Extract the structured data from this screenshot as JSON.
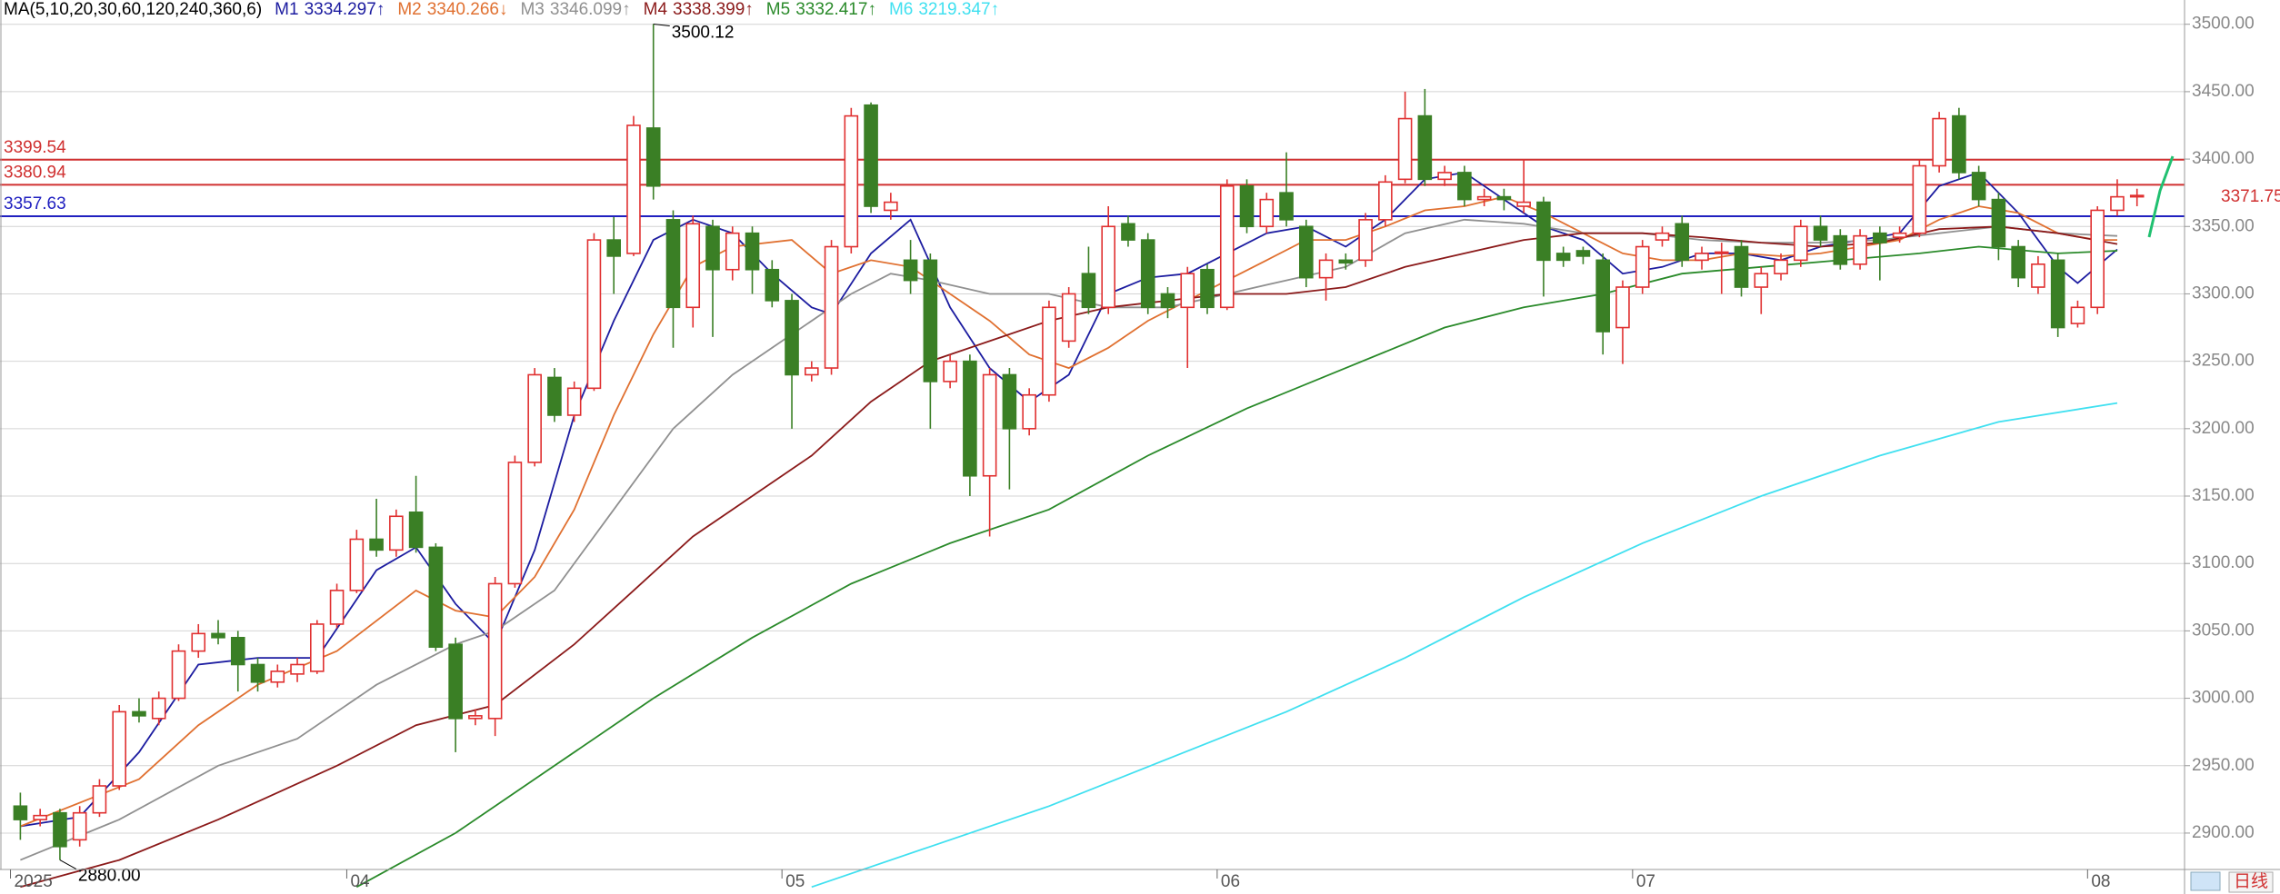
{
  "chart_data": {
    "type": "candlestick",
    "legend_prefix": "MA(5,10,20,30,60,120,240,360,6)",
    "ylim": [
      2873,
      3518
    ],
    "yticks": [
      {
        "value": 2900,
        "label": "2900.00"
      },
      {
        "value": 2950,
        "label": "2950.00"
      },
      {
        "value": 3000,
        "label": "3000.00"
      },
      {
        "value": 3050,
        "label": "3050.00"
      },
      {
        "value": 3100,
        "label": "3100.00"
      },
      {
        "value": 3150,
        "label": "3150.00"
      },
      {
        "value": 3200,
        "label": "3200.00"
      },
      {
        "value": 3250,
        "label": "3250.00"
      },
      {
        "value": 3300,
        "label": "3300.00"
      },
      {
        "value": 3350,
        "label": "3350.00"
      },
      {
        "value": 3400,
        "label": "3400.00"
      },
      {
        "value": 3450,
        "label": "3450.00"
      },
      {
        "value": 3500,
        "label": "3500.00"
      }
    ],
    "grid": true,
    "up_color": "#e03030",
    "down_color": "#3a7f25",
    "x_labels": [
      {
        "index": 0,
        "label": "2025"
      },
      {
        "index": 17,
        "label": "04"
      },
      {
        "index": 39,
        "label": "05"
      },
      {
        "index": 61,
        "label": "06"
      },
      {
        "index": 82,
        "label": "07"
      },
      {
        "index": 105,
        "label": "08"
      }
    ],
    "period": "日线",
    "candle_fields": [
      "open",
      "high",
      "low",
      "close"
    ],
    "candles": [
      [
        2920,
        2930,
        2895,
        2910
      ],
      [
        2910,
        2918,
        2905,
        2913
      ],
      [
        2915,
        2918,
        2880,
        2890
      ],
      [
        2895,
        2920,
        2890,
        2915
      ],
      [
        2915,
        2940,
        2912,
        2935
      ],
      [
        2935,
        2995,
        2932,
        2990
      ],
      [
        2990,
        3000,
        2982,
        2987
      ],
      [
        2985,
        3005,
        2980,
        3000
      ],
      [
        3000,
        3040,
        2998,
        3035
      ],
      [
        3035,
        3055,
        3030,
        3048
      ],
      [
        3048,
        3058,
        3040,
        3045
      ],
      [
        3045,
        3050,
        3005,
        3025
      ],
      [
        3025,
        3030,
        3005,
        3012
      ],
      [
        3012,
        3025,
        3008,
        3020
      ],
      [
        3018,
        3030,
        3012,
        3025
      ],
      [
        3020,
        3058,
        3018,
        3055
      ],
      [
        3055,
        3085,
        3052,
        3080
      ],
      [
        3080,
        3125,
        3078,
        3118
      ],
      [
        3118,
        3148,
        3105,
        3110
      ],
      [
        3110,
        3140,
        3105,
        3135
      ],
      [
        3138,
        3165,
        3108,
        3112
      ],
      [
        3112,
        3115,
        3035,
        3038
      ],
      [
        3040,
        3045,
        2960,
        2985
      ],
      [
        2985,
        2992,
        2980,
        2987
      ],
      [
        2985,
        3090,
        2972,
        3085
      ],
      [
        3085,
        3180,
        3082,
        3175
      ],
      [
        3175,
        3245,
        3172,
        3240
      ],
      [
        3238,
        3245,
        3205,
        3210
      ],
      [
        3210,
        3235,
        3205,
        3230
      ],
      [
        3230,
        3345,
        3228,
        3340
      ],
      [
        3340,
        3357,
        3300,
        3328
      ],
      [
        3330,
        3432,
        3328,
        3425
      ],
      [
        3423,
        3500.12,
        3370,
        3380
      ],
      [
        3355,
        3362,
        3260,
        3290
      ],
      [
        3290,
        3358,
        3275,
        3352
      ],
      [
        3350,
        3355,
        3268,
        3318
      ],
      [
        3318,
        3350,
        3310,
        3345
      ],
      [
        3345,
        3350,
        3300,
        3318
      ],
      [
        3318,
        3325,
        3290,
        3295
      ],
      [
        3295,
        3300,
        3200,
        3240
      ],
      [
        3240,
        3250,
        3235,
        3245
      ],
      [
        3245,
        3340,
        3240,
        3335
      ],
      [
        3335,
        3438,
        3330,
        3432
      ],
      [
        3440,
        3442,
        3360,
        3365
      ],
      [
        3362,
        3375,
        3355,
        3368
      ],
      [
        3325,
        3340,
        3300,
        3310
      ],
      [
        3325,
        3330,
        3200,
        3235
      ],
      [
        3235,
        3255,
        3230,
        3250
      ],
      [
        3250,
        3255,
        3150,
        3165
      ],
      [
        3165,
        3245,
        3120,
        3240
      ],
      [
        3240,
        3245,
        3155,
        3200
      ],
      [
        3200,
        3230,
        3195,
        3225
      ],
      [
        3225,
        3295,
        3220,
        3290
      ],
      [
        3265,
        3305,
        3260,
        3300
      ],
      [
        3315,
        3335,
        3285,
        3290
      ],
      [
        3290,
        3365,
        3285,
        3350
      ],
      [
        3352,
        3358,
        3335,
        3340
      ],
      [
        3340,
        3345,
        3285,
        3290
      ],
      [
        3300,
        3305,
        3282,
        3290
      ],
      [
        3290,
        3320,
        3245,
        3315
      ],
      [
        3318,
        3322,
        3285,
        3290
      ],
      [
        3290,
        3385,
        3288,
        3380
      ],
      [
        3380,
        3385,
        3345,
        3350
      ],
      [
        3350,
        3375,
        3345,
        3370
      ],
      [
        3375,
        3405,
        3350,
        3355
      ],
      [
        3350,
        3355,
        3305,
        3312
      ],
      [
        3312,
        3330,
        3295,
        3325
      ],
      [
        3325,
        3330,
        3318,
        3323
      ],
      [
        3325,
        3360,
        3320,
        3355
      ],
      [
        3355,
        3388,
        3350,
        3383
      ],
      [
        3385,
        3450,
        3382,
        3430
      ],
      [
        3432,
        3452,
        3380,
        3385
      ],
      [
        3385,
        3395,
        3380,
        3390
      ],
      [
        3390,
        3395,
        3365,
        3370
      ],
      [
        3370,
        3378,
        3365,
        3372
      ],
      [
        3372,
        3378,
        3362,
        3370
      ],
      [
        3365,
        3400,
        3360,
        3368
      ],
      [
        3368,
        3372,
        3298,
        3325
      ],
      [
        3330,
        3335,
        3320,
        3325
      ],
      [
        3332,
        3335,
        3322,
        3328
      ],
      [
        3325,
        3330,
        3255,
        3272
      ],
      [
        3275,
        3310,
        3248,
        3305
      ],
      [
        3305,
        3340,
        3300,
        3335
      ],
      [
        3340,
        3350,
        3335,
        3345
      ],
      [
        3352,
        3358,
        3320,
        3325
      ],
      [
        3325,
        3335,
        3318,
        3330
      ],
      [
        3330,
        3338,
        3300,
        3331
      ],
      [
        3335,
        3340,
        3298,
        3305
      ],
      [
        3305,
        3320,
        3285,
        3315
      ],
      [
        3315,
        3330,
        3310,
        3325
      ],
      [
        3325,
        3355,
        3320,
        3350
      ],
      [
        3350,
        3358,
        3335,
        3340
      ],
      [
        3343,
        3348,
        3318,
        3322
      ],
      [
        3322,
        3348,
        3318,
        3343
      ],
      [
        3345,
        3350,
        3310,
        3338
      ],
      [
        3342,
        3350,
        3338,
        3345
      ],
      [
        3345,
        3400,
        3342,
        3395
      ],
      [
        3395,
        3435,
        3390,
        3430
      ],
      [
        3432,
        3438,
        3385,
        3390
      ],
      [
        3390,
        3395,
        3365,
        3370
      ],
      [
        3370,
        3375,
        3325,
        3335
      ],
      [
        3335,
        3340,
        3305,
        3312
      ],
      [
        3305,
        3328,
        3300,
        3322
      ],
      [
        3325,
        3330,
        3268,
        3275
      ],
      [
        3278,
        3295,
        3275,
        3290
      ],
      [
        3290,
        3365,
        3285,
        3362
      ],
      [
        3362,
        3385,
        3358,
        3372
      ],
      [
        3372,
        3378,
        3365,
        3373
      ]
    ],
    "series": [
      {
        "name": "M1",
        "color": "#1c1ca0",
        "value": 3334.297,
        "trend": "↑",
        "x": [
          0,
          3,
          6,
          9,
          12,
          15,
          18,
          20,
          22,
          24,
          26,
          28,
          30,
          32,
          34,
          36,
          38,
          40,
          41,
          43,
          45,
          47,
          49,
          51,
          53,
          55,
          57,
          59,
          61,
          63,
          65,
          67,
          69,
          71,
          73,
          75,
          77,
          79,
          81,
          83,
          85,
          87,
          89,
          91,
          93,
          95,
          97,
          99,
          101,
          103,
          104,
          106
        ],
        "values": [
          2905,
          2912,
          2960,
          3025,
          3030,
          3030,
          3095,
          3112,
          3070,
          3040,
          3110,
          3210,
          3280,
          3340,
          3355,
          3345,
          3315,
          3290,
          3285,
          3330,
          3355,
          3290,
          3245,
          3220,
          3240,
          3300,
          3312,
          3315,
          3330,
          3345,
          3350,
          3335,
          3355,
          3385,
          3390,
          3370,
          3350,
          3340,
          3315,
          3320,
          3330,
          3330,
          3325,
          3335,
          3340,
          3345,
          3380,
          3390,
          3360,
          3320,
          3308,
          3333
        ]
      },
      {
        "name": "M2",
        "color": "#e07030",
        "value": 3340.266,
        "trend": "↓",
        "x": [
          0,
          6,
          9,
          12,
          16,
          20,
          22,
          24,
          26,
          28,
          30,
          32,
          34,
          36,
          39,
          41,
          43,
          45,
          47,
          49,
          51,
          53,
          55,
          57,
          59,
          61,
          63,
          65,
          67,
          69,
          71,
          73,
          75,
          77,
          79,
          81,
          83,
          85,
          87,
          89,
          91,
          93,
          95,
          97,
          99,
          101,
          103,
          105,
          106
        ],
        "values": [
          2905,
          2940,
          2980,
          3010,
          3035,
          3080,
          3065,
          3060,
          3090,
          3140,
          3210,
          3270,
          3320,
          3335,
          3340,
          3315,
          3325,
          3320,
          3300,
          3280,
          3255,
          3245,
          3260,
          3280,
          3295,
          3310,
          3325,
          3340,
          3340,
          3350,
          3362,
          3365,
          3372,
          3360,
          3345,
          3330,
          3325,
          3325,
          3330,
          3328,
          3330,
          3335,
          3340,
          3355,
          3365,
          3360,
          3345,
          3340,
          3340
        ]
      },
      {
        "name": "M3",
        "color": "#909090",
        "value": 3346.099,
        "trend": "↑",
        "x": [
          0,
          5,
          10,
          14,
          18,
          22,
          24,
          27,
          30,
          33,
          36,
          39,
          42,
          44,
          46,
          49,
          52,
          55,
          58,
          61,
          64,
          67,
          70,
          73,
          76,
          79,
          82,
          85,
          88,
          91,
          94,
          97,
          100,
          103,
          106
        ],
        "values": [
          2880,
          2910,
          2950,
          2970,
          3010,
          3040,
          3050,
          3080,
          3140,
          3200,
          3240,
          3270,
          3300,
          3315,
          3310,
          3300,
          3300,
          3290,
          3290,
          3300,
          3310,
          3320,
          3345,
          3355,
          3352,
          3345,
          3345,
          3340,
          3338,
          3338,
          3340,
          3345,
          3350,
          3345,
          3343
        ]
      },
      {
        "name": "M4",
        "color": "#8b1a1a",
        "value": 3338.399,
        "trend": "↑",
        "x": [
          0,
          5,
          10,
          16,
          20,
          24,
          28,
          31,
          34,
          37,
          40,
          43,
          46,
          49,
          52,
          55,
          58,
          61,
          64,
          67,
          70,
          73,
          76,
          79,
          82,
          85,
          88,
          91,
          94,
          97,
          100,
          103,
          106
        ],
        "values": [
          2860,
          2880,
          2910,
          2950,
          2980,
          2995,
          3040,
          3080,
          3120,
          3150,
          3180,
          3220,
          3250,
          3265,
          3280,
          3290,
          3295,
          3300,
          3300,
          3305,
          3320,
          3330,
          3340,
          3345,
          3345,
          3342,
          3338,
          3335,
          3338,
          3348,
          3350,
          3345,
          3337
        ]
      },
      {
        "name": "M5",
        "color": "#2a8a2a",
        "value": 3332.417,
        "trend": "↑",
        "x": [
          17,
          22,
          27,
          32,
          37,
          42,
          47,
          52,
          57,
          62,
          67,
          72,
          76,
          80,
          84,
          88,
          92,
          96,
          99,
          103,
          106
        ],
        "values": [
          2860,
          2900,
          2950,
          3000,
          3045,
          3085,
          3115,
          3140,
          3180,
          3215,
          3245,
          3275,
          3290,
          3300,
          3315,
          3320,
          3325,
          3330,
          3335,
          3330,
          3332
        ]
      },
      {
        "name": "M6",
        "color": "#40e0f0",
        "value": 3219.347,
        "trend": "↑",
        "x": [
          40,
          46,
          52,
          58,
          64,
          70,
          76,
          82,
          88,
          94,
          100,
          106
        ],
        "values": [
          2860,
          2890,
          2920,
          2955,
          2990,
          3030,
          3075,
          3115,
          3150,
          3180,
          3205,
          3219
        ]
      }
    ],
    "levels": [
      {
        "value": 3399.54,
        "color": "#d03030"
      },
      {
        "value": 3380.94,
        "color": "#d03030"
      },
      {
        "value": 3357.63,
        "color": "#2020c0"
      }
    ],
    "last_price": 3371.75,
    "annotations": [
      {
        "index": 32,
        "value": 3500.12,
        "label": "3500.12",
        "at": "high"
      },
      {
        "index": 2,
        "value": 2880,
        "label": "2880.00",
        "at": "low"
      }
    ]
  }
}
